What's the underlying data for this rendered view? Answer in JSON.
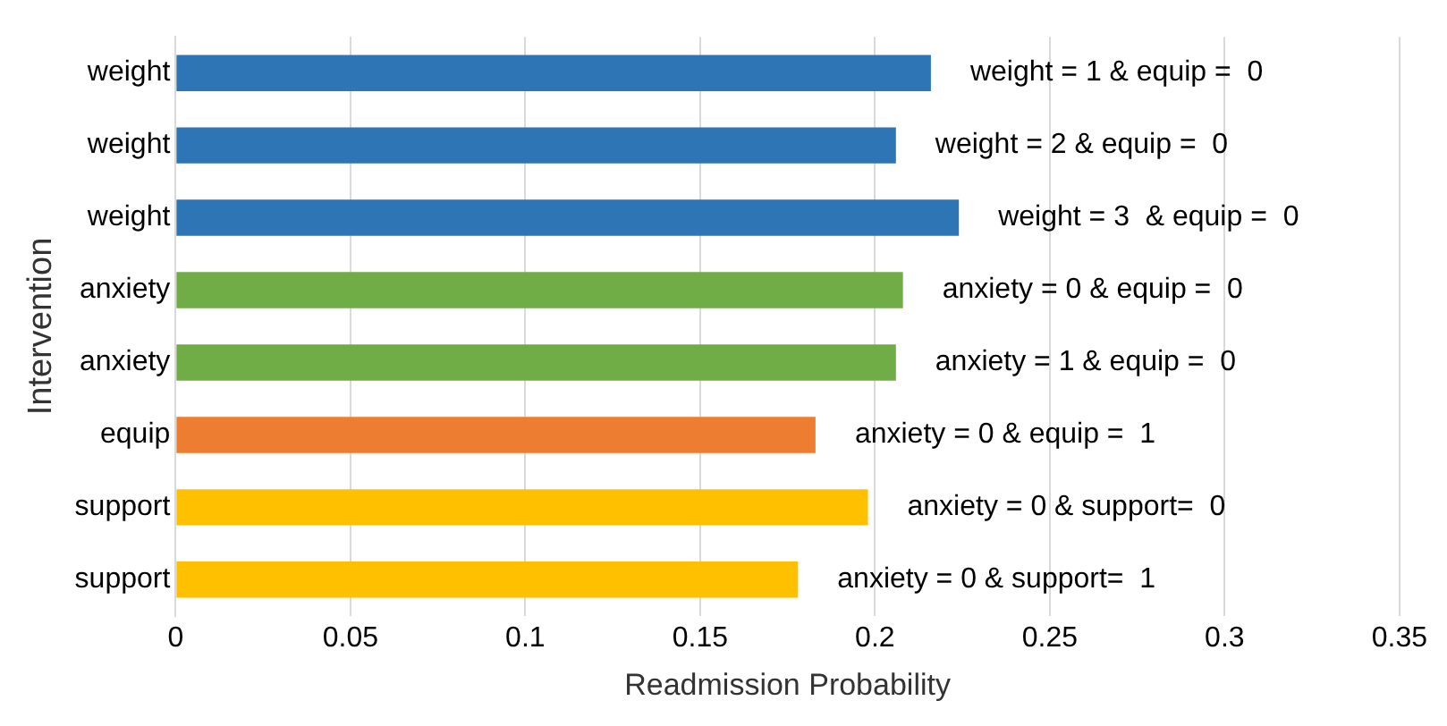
{
  "chart_data": {
    "type": "bar",
    "orientation": "horizontal",
    "xlabel": "Readmission Probability",
    "ylabel": "Intervention",
    "categories": [
      "weight",
      "weight",
      "weight",
      "anxiety",
      "anxiety",
      "equip",
      "support",
      "support"
    ],
    "values": [
      0.216,
      0.206,
      0.224,
      0.208,
      0.206,
      0.183,
      0.198,
      0.178
    ],
    "colors": [
      "#2e75b6",
      "#2e75b6",
      "#2e75b6",
      "#70ad47",
      "#70ad47",
      "#ed7d31",
      "#ffc000",
      "#ffc000"
    ],
    "value_labels": [
      "weight = 1 & equip =  0",
      "weight = 2 & equip =  0",
      "weight = 3  & equip =  0",
      "anxiety = 0 & equip =  0",
      "anxiety = 1 & equip =  0",
      "anxiety = 0 & equip =  1",
      "anxiety = 0 & support=  0",
      "anxiety = 0 & support=  1"
    ],
    "xlim": [
      0,
      0.35
    ],
    "xticks": [
      0,
      0.05,
      0.1,
      0.15,
      0.2,
      0.25,
      0.3,
      0.35
    ],
    "grid": "x",
    "legend": false
  }
}
